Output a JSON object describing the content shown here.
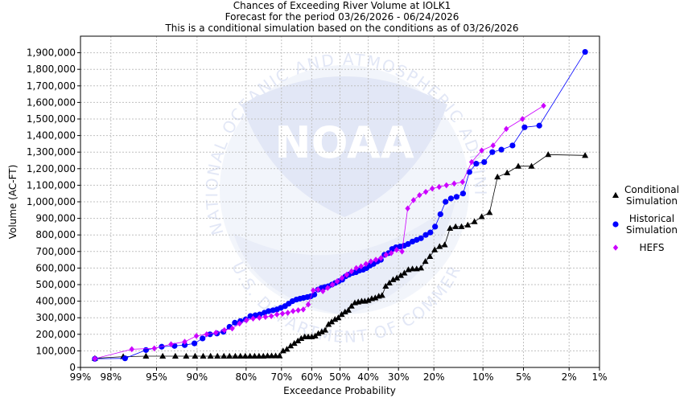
{
  "chart_data": {
    "type": "scatter",
    "title_lines": [
      "Chances of Exceeding River Volume at IOLK1",
      "Forecast for the period 03/26/2026 - 06/24/2026",
      "This is a conditional simulation based on the conditions as of 03/26/2026"
    ],
    "xlabel": "Exceedance Probability",
    "ylabel": "Volume (AC-FT)",
    "x_scale": "normal-probability",
    "x_ticks": [
      {
        "value": 99,
        "label": "99%"
      },
      {
        "value": 98,
        "label": "98%"
      },
      {
        "value": 95,
        "label": "95%"
      },
      {
        "value": 90,
        "label": "90%"
      },
      {
        "value": 80,
        "label": "80%"
      },
      {
        "value": 70,
        "label": "70%"
      },
      {
        "value": 60,
        "label": "60%"
      },
      {
        "value": 50,
        "label": "50%"
      },
      {
        "value": 40,
        "label": "40%"
      },
      {
        "value": 30,
        "label": "30%"
      },
      {
        "value": 20,
        "label": "20%"
      },
      {
        "value": 10,
        "label": "10%"
      },
      {
        "value": 5,
        "label": "5%"
      },
      {
        "value": 2,
        "label": "2%"
      },
      {
        "value": 1,
        "label": "1%"
      }
    ],
    "xlim": [
      99,
      1
    ],
    "ylim": [
      0,
      2000000
    ],
    "y_ticks": [
      {
        "value": 0,
        "label": "0"
      },
      {
        "value": 100000,
        "label": "100,000"
      },
      {
        "value": 200000,
        "label": "200,000"
      },
      {
        "value": 300000,
        "label": "300,000"
      },
      {
        "value": 400000,
        "label": "400,000"
      },
      {
        "value": 500000,
        "label": "500,000"
      },
      {
        "value": 600000,
        "label": "600,000"
      },
      {
        "value": 700000,
        "label": "700,000"
      },
      {
        "value": 800000,
        "label": "800,000"
      },
      {
        "value": 900000,
        "label": "900,000"
      },
      {
        "value": 1000000,
        "label": "1,000,000"
      },
      {
        "value": 1100000,
        "label": "1,100,000"
      },
      {
        "value": 1200000,
        "label": "1,200,000"
      },
      {
        "value": 1300000,
        "label": "1,300,000"
      },
      {
        "value": 1400000,
        "label": "1,400,000"
      },
      {
        "value": 1500000,
        "label": "1,500,000"
      },
      {
        "value": 1600000,
        "label": "1,600,000"
      },
      {
        "value": 1700000,
        "label": "1,700,000"
      },
      {
        "value": 1800000,
        "label": "1,800,000"
      },
      {
        "value": 1900000,
        "label": "1,900,000"
      }
    ],
    "grid": true,
    "legend_position": "right",
    "watermark_text": [
      "NATIONAL OCEANIC AND ATMOSPHERIC ADMINISTRATION",
      "NOAA",
      "U.S. DEPARTMENT OF COMMERCE"
    ],
    "series": [
      {
        "name": "Conditional Simulation",
        "legend_lines": [
          "Conditional",
          "Simulation"
        ],
        "color": "#000000",
        "marker": "triangle",
        "points": [
          [
            98.6,
            55000
          ],
          [
            97.4,
            65000
          ],
          [
            95.9,
            68000
          ],
          [
            94.4,
            68000
          ],
          [
            93.0,
            68000
          ],
          [
            91.6,
            68000
          ],
          [
            90.3,
            68000
          ],
          [
            89.0,
            68000
          ],
          [
            87.7,
            68000
          ],
          [
            86.4,
            68000
          ],
          [
            85.1,
            68000
          ],
          [
            83.9,
            68000
          ],
          [
            82.6,
            68000
          ],
          [
            81.4,
            68000
          ],
          [
            80.2,
            68000
          ],
          [
            79.0,
            68000
          ],
          [
            77.8,
            68000
          ],
          [
            76.6,
            68000
          ],
          [
            75.4,
            68000
          ],
          [
            74.2,
            70000
          ],
          [
            73.0,
            70000
          ],
          [
            71.8,
            70000
          ],
          [
            70.6,
            70000
          ],
          [
            69.5,
            100000
          ],
          [
            68.3,
            110000
          ],
          [
            67.1,
            130000
          ],
          [
            65.9,
            145000
          ],
          [
            64.7,
            160000
          ],
          [
            63.6,
            175000
          ],
          [
            62.4,
            185000
          ],
          [
            61.2,
            185000
          ],
          [
            60.0,
            185000
          ],
          [
            58.8,
            190000
          ],
          [
            57.7,
            205000
          ],
          [
            56.5,
            215000
          ],
          [
            55.3,
            225000
          ],
          [
            54.1,
            260000
          ],
          [
            53.0,
            275000
          ],
          [
            51.8,
            290000
          ],
          [
            50.6,
            300000
          ],
          [
            49.4,
            320000
          ],
          [
            48.2,
            335000
          ],
          [
            47.0,
            345000
          ],
          [
            45.9,
            370000
          ],
          [
            44.7,
            390000
          ],
          [
            43.5,
            395000
          ],
          [
            42.3,
            400000
          ],
          [
            41.2,
            400000
          ],
          [
            40.0,
            405000
          ],
          [
            38.8,
            415000
          ],
          [
            37.6,
            420000
          ],
          [
            36.4,
            430000
          ],
          [
            35.3,
            435000
          ],
          [
            34.1,
            490000
          ],
          [
            32.9,
            510000
          ],
          [
            31.7,
            530000
          ],
          [
            30.5,
            540000
          ],
          [
            29.3,
            555000
          ],
          [
            28.2,
            570000
          ],
          [
            27.0,
            590000
          ],
          [
            25.8,
            595000
          ],
          [
            24.6,
            595000
          ],
          [
            23.4,
            600000
          ],
          [
            22.2,
            640000
          ],
          [
            21.0,
            670000
          ],
          [
            19.8,
            710000
          ],
          [
            18.6,
            730000
          ],
          [
            17.4,
            740000
          ],
          [
            16.2,
            840000
          ],
          [
            15.0,
            850000
          ],
          [
            13.8,
            850000
          ],
          [
            12.6,
            860000
          ],
          [
            11.4,
            880000
          ],
          [
            10.2,
            910000
          ],
          [
            9.0,
            935000
          ],
          [
            7.9,
            1150000
          ],
          [
            6.7,
            1175000
          ],
          [
            5.5,
            1215000
          ],
          [
            4.3,
            1215000
          ],
          [
            3.1,
            1285000
          ],
          [
            1.4,
            1280000
          ]
        ]
      },
      {
        "name": "Historical Simulation",
        "legend_lines": [
          "Historical",
          "Simulation"
        ],
        "color": "#0000ff",
        "marker": "circle",
        "points": [
          [
            98.6,
            52000
          ],
          [
            97.3,
            55000
          ],
          [
            95.9,
            105000
          ],
          [
            94.5,
            125000
          ],
          [
            93.1,
            130000
          ],
          [
            91.8,
            135000
          ],
          [
            90.4,
            145000
          ],
          [
            89.1,
            175000
          ],
          [
            87.8,
            200000
          ],
          [
            86.5,
            205000
          ],
          [
            85.2,
            215000
          ],
          [
            83.9,
            245000
          ],
          [
            82.7,
            270000
          ],
          [
            81.4,
            280000
          ],
          [
            80.1,
            290000
          ],
          [
            78.9,
            310000
          ],
          [
            77.6,
            315000
          ],
          [
            76.4,
            320000
          ],
          [
            75.1,
            330000
          ],
          [
            73.9,
            340000
          ],
          [
            72.6,
            345000
          ],
          [
            71.4,
            350000
          ],
          [
            70.2,
            360000
          ],
          [
            68.9,
            370000
          ],
          [
            67.7,
            385000
          ],
          [
            66.5,
            400000
          ],
          [
            65.2,
            410000
          ],
          [
            64.0,
            415000
          ],
          [
            62.8,
            420000
          ],
          [
            61.5,
            425000
          ],
          [
            60.3,
            430000
          ],
          [
            59.1,
            440000
          ],
          [
            57.8,
            470000
          ],
          [
            56.6,
            480000
          ],
          [
            55.4,
            485000
          ],
          [
            54.2,
            490000
          ],
          [
            52.9,
            500000
          ],
          [
            51.7,
            510000
          ],
          [
            50.5,
            520000
          ],
          [
            49.2,
            530000
          ],
          [
            48.0,
            550000
          ],
          [
            46.8,
            560000
          ],
          [
            45.5,
            570000
          ],
          [
            44.3,
            575000
          ],
          [
            43.1,
            585000
          ],
          [
            41.8,
            590000
          ],
          [
            40.6,
            600000
          ],
          [
            39.4,
            615000
          ],
          [
            38.2,
            625000
          ],
          [
            36.9,
            640000
          ],
          [
            35.7,
            650000
          ],
          [
            34.5,
            680000
          ],
          [
            33.2,
            690000
          ],
          [
            32.0,
            715000
          ],
          [
            30.8,
            725000
          ],
          [
            29.5,
            730000
          ],
          [
            28.3,
            735000
          ],
          [
            27.1,
            745000
          ],
          [
            25.8,
            760000
          ],
          [
            24.6,
            770000
          ],
          [
            23.4,
            780000
          ],
          [
            22.1,
            800000
          ],
          [
            20.9,
            815000
          ],
          [
            19.7,
            850000
          ],
          [
            18.4,
            925000
          ],
          [
            17.2,
            1000000
          ],
          [
            16.0,
            1020000
          ],
          [
            14.8,
            1030000
          ],
          [
            13.5,
            1050000
          ],
          [
            12.3,
            1180000
          ],
          [
            11.1,
            1230000
          ],
          [
            9.8,
            1240000
          ],
          [
            8.6,
            1300000
          ],
          [
            7.4,
            1315000
          ],
          [
            6.1,
            1340000
          ],
          [
            4.9,
            1450000
          ],
          [
            3.7,
            1460000
          ],
          [
            1.4,
            1905000
          ]
        ]
      },
      {
        "name": "HEFS",
        "legend_lines": [
          "HEFS"
        ],
        "color": "#cc00ff",
        "marker": "diamond",
        "points": [
          [
            98.6,
            53000
          ],
          [
            96.9,
            110000
          ],
          [
            95.2,
            115000
          ],
          [
            93.5,
            140000
          ],
          [
            91.8,
            155000
          ],
          [
            90.1,
            190000
          ],
          [
            88.4,
            200000
          ],
          [
            86.7,
            210000
          ],
          [
            85.0,
            225000
          ],
          [
            83.3,
            235000
          ],
          [
            81.6,
            265000
          ],
          [
            79.9,
            285000
          ],
          [
            78.2,
            295000
          ],
          [
            76.5,
            300000
          ],
          [
            74.8,
            305000
          ],
          [
            73.1,
            310000
          ],
          [
            71.4,
            320000
          ],
          [
            69.7,
            325000
          ],
          [
            68.0,
            330000
          ],
          [
            66.3,
            340000
          ],
          [
            64.6,
            345000
          ],
          [
            62.9,
            350000
          ],
          [
            61.2,
            380000
          ],
          [
            59.5,
            465000
          ],
          [
            57.8,
            470000
          ],
          [
            56.1,
            460000
          ],
          [
            54.4,
            480000
          ],
          [
            52.7,
            500000
          ],
          [
            51.0,
            520000
          ],
          [
            49.3,
            540000
          ],
          [
            47.6,
            560000
          ],
          [
            45.9,
            580000
          ],
          [
            44.2,
            600000
          ],
          [
            42.5,
            610000
          ],
          [
            40.8,
            625000
          ],
          [
            39.1,
            640000
          ],
          [
            37.4,
            650000
          ],
          [
            35.7,
            660000
          ],
          [
            34.0,
            680000
          ],
          [
            32.3,
            690000
          ],
          [
            30.6,
            710000
          ],
          [
            28.9,
            700000
          ],
          [
            27.2,
            960000
          ],
          [
            25.5,
            1010000
          ],
          [
            23.8,
            1040000
          ],
          [
            22.1,
            1060000
          ],
          [
            20.4,
            1080000
          ],
          [
            18.7,
            1090000
          ],
          [
            17.0,
            1100000
          ],
          [
            15.3,
            1110000
          ],
          [
            13.6,
            1120000
          ],
          [
            11.9,
            1240000
          ],
          [
            10.2,
            1310000
          ],
          [
            8.5,
            1340000
          ],
          [
            6.8,
            1440000
          ],
          [
            5.1,
            1500000
          ],
          [
            3.4,
            1580000
          ]
        ]
      }
    ]
  }
}
